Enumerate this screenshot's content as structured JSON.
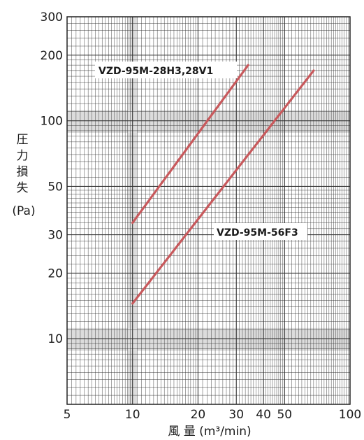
{
  "chart_data": {
    "type": "line",
    "x_scale": "log",
    "y_scale": "log",
    "xlim": [
      5,
      100
    ],
    "ylim": [
      5,
      300
    ],
    "x_ticks": [
      5,
      10,
      20,
      30,
      40,
      50,
      100
    ],
    "y_ticks": [
      10,
      20,
      30,
      50,
      100,
      200,
      300
    ],
    "x_tick_labels": [
      "5",
      "10",
      "20",
      "30",
      "40",
      "50",
      "100"
    ],
    "y_tick_labels": [
      "10",
      "20",
      "30",
      "50",
      "100",
      "200",
      "300"
    ],
    "xlabel": "風 量 (m³/min)",
    "ylabel_lines": [
      "圧",
      "力",
      "損",
      "失",
      "(Pa)"
    ],
    "grid": true,
    "colors": {
      "line": "#c8595c",
      "grid": "#333333",
      "band": "#dcdcdc"
    },
    "series": [
      {
        "name": "VZD-95M-28H3,28V1",
        "x": [
          10,
          34
        ],
        "y": [
          34,
          180
        ]
      },
      {
        "name": "VZD-95M-56F3",
        "x": [
          10,
          68
        ],
        "y": [
          14.5,
          170
        ]
      }
    ]
  }
}
